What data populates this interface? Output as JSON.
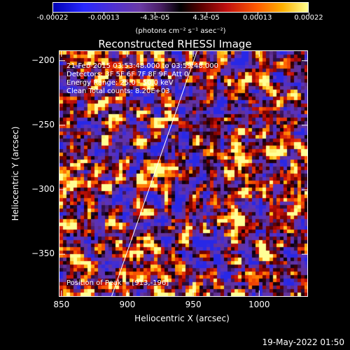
{
  "colorbar": {
    "ticks": [
      "-0.00022",
      "-0.00013",
      "-4.3e-05",
      "4.3e-05",
      "0.00013",
      "0.00022"
    ],
    "units_text": "(photons cm⁻² s⁻¹ asec⁻²)"
  },
  "chart_data": {
    "type": "heatmap",
    "title": "Reconstructed RHESSI Image",
    "xlabel": "Heliocentric X (arcsec)",
    "ylabel": "Heliocentric Y (arcsec)",
    "xlim": [
      848,
      1037
    ],
    "ylim": [
      -383,
      -192
    ],
    "xticks": [
      850,
      900,
      950,
      1000
    ],
    "yticks": [
      -200,
      -250,
      -300,
      -350
    ],
    "xtick_labels": [
      "850",
      "900",
      "950",
      "1000"
    ],
    "ytick_labels": [
      "−200",
      "−250",
      "−300",
      "−350"
    ],
    "colorbar_range": [
      -0.00022,
      0.00022
    ],
    "limb_line": [
      [
        888,
        -383
      ],
      [
        953,
        -192
      ]
    ],
    "annotations": {
      "time": "21-Feb-2015 03:53:48.000 to 03:59:48.000",
      "detectors": "Detectors: 3F 5F 6F 7F 8F 9F, Att 0",
      "energy": "Energy Range: 25.0 - 50.0 keV",
      "method": "Clean     Total counts: 8.20E+03",
      "peak": "Position of Peak = [913,-196]"
    }
  },
  "footer": {
    "date": "19-May-2022 01:50"
  }
}
